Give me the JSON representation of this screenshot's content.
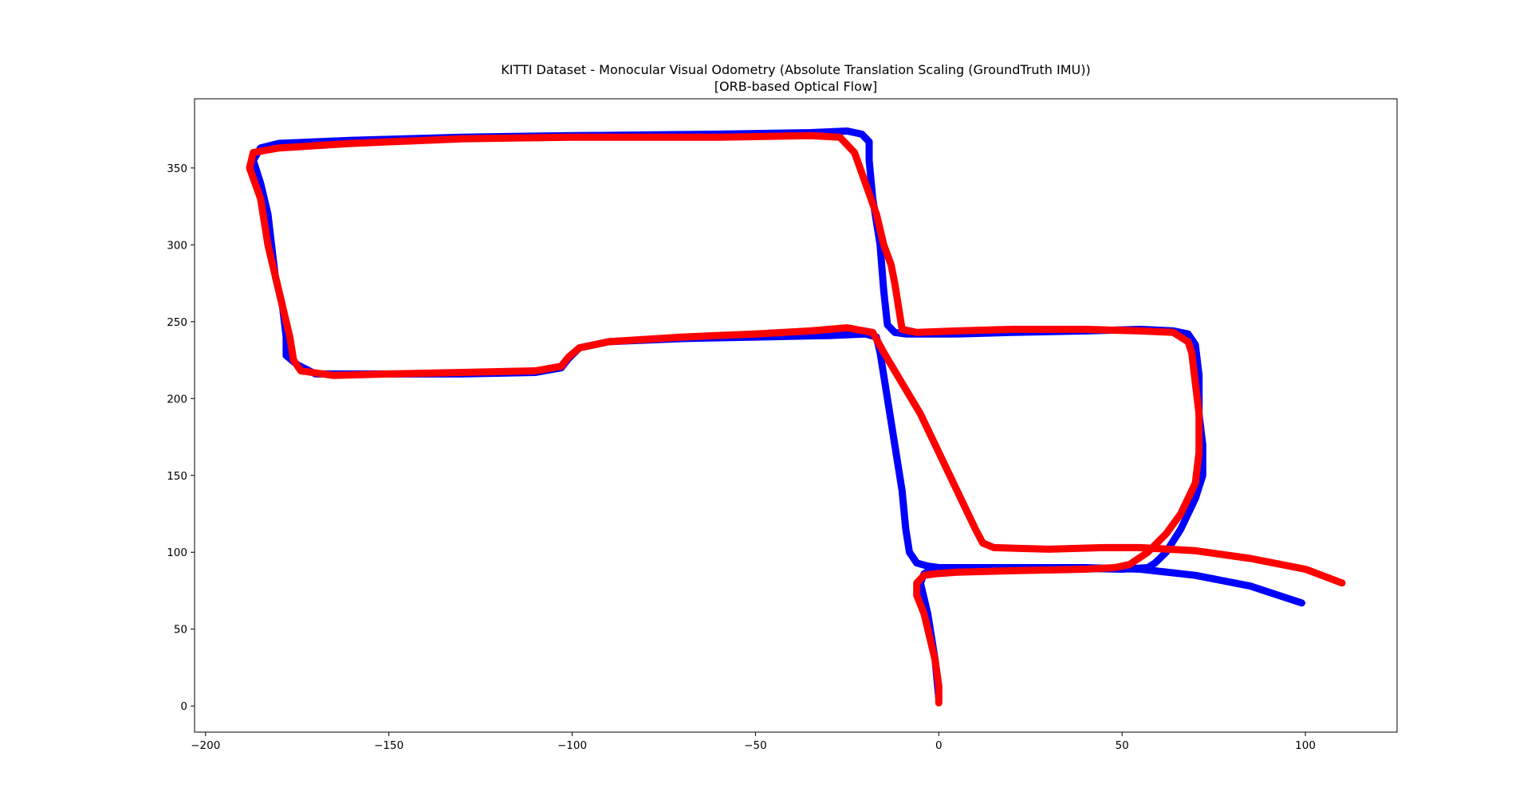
{
  "chart_data": {
    "type": "line",
    "title": "KITTI Dataset - Monocular Visual Odometry (Absolute Translation Scaling (GroundTruth IMU))",
    "subtitle": "[ORB-based Optical Flow]",
    "xlabel": "",
    "ylabel": "",
    "xlim": [
      -203,
      125
    ],
    "ylim": [
      -17,
      395
    ],
    "xticks": [
      -200,
      -150,
      -100,
      -50,
      0,
      50,
      100
    ],
    "yticks": [
      0,
      50,
      100,
      150,
      200,
      250,
      300,
      350
    ],
    "xtick_labels": [
      "−200",
      "−150",
      "−100",
      "−50",
      "0",
      "50",
      "100"
    ],
    "ytick_labels": [
      "0",
      "50",
      "100",
      "150",
      "200",
      "250",
      "300",
      "350"
    ],
    "grid": false,
    "series": [
      {
        "color": "#0000ff",
        "points": [
          [
            0,
            5
          ],
          [
            -1,
            30
          ],
          [
            -3,
            60
          ],
          [
            -5,
            80
          ],
          [
            -4,
            86
          ],
          [
            -2,
            89
          ],
          [
            3,
            90
          ],
          [
            10,
            90
          ],
          [
            30,
            90
          ],
          [
            50,
            89
          ],
          [
            57,
            90
          ],
          [
            59,
            93
          ],
          [
            62,
            100
          ],
          [
            66,
            115
          ],
          [
            70,
            135
          ],
          [
            72,
            150
          ],
          [
            72,
            170
          ],
          [
            71,
            190
          ],
          [
            71,
            215
          ],
          [
            70,
            235
          ],
          [
            68,
            242
          ],
          [
            64,
            244
          ],
          [
            55,
            245
          ],
          [
            40,
            244
          ],
          [
            20,
            243
          ],
          [
            5,
            242
          ],
          [
            -9,
            242
          ],
          [
            -12,
            243
          ],
          [
            -14,
            248
          ],
          [
            -15,
            270
          ],
          [
            -16,
            300
          ],
          [
            -18,
            330
          ],
          [
            -19,
            355
          ],
          [
            -19,
            367
          ],
          [
            -21,
            372
          ],
          [
            -25,
            374
          ],
          [
            -35,
            373
          ],
          [
            -60,
            372
          ],
          [
            -100,
            371
          ],
          [
            -130,
            370
          ],
          [
            -160,
            368
          ],
          [
            -180,
            366
          ],
          [
            -185,
            363
          ],
          [
            -187,
            355
          ],
          [
            -185,
            340
          ],
          [
            -183,
            320
          ],
          [
            -182,
            300
          ],
          [
            -181,
            280
          ],
          [
            -179,
            260
          ],
          [
            -178,
            240
          ],
          [
            -178,
            228
          ],
          [
            -175,
            222
          ],
          [
            -170,
            216
          ],
          [
            -155,
            216
          ],
          [
            -130,
            216
          ],
          [
            -110,
            217
          ],
          [
            -103,
            220
          ],
          [
            -101,
            226
          ],
          [
            -98,
            233
          ],
          [
            -90,
            237
          ],
          [
            -70,
            239
          ],
          [
            -50,
            240
          ],
          [
            -30,
            241
          ],
          [
            -20,
            242
          ],
          [
            -17,
            240
          ],
          [
            -16,
            230
          ],
          [
            -14,
            200
          ],
          [
            -12,
            170
          ],
          [
            -10,
            140
          ],
          [
            -9,
            115
          ],
          [
            -8,
            100
          ],
          [
            -6,
            93
          ],
          [
            -3,
            91
          ],
          [
            0,
            90
          ],
          [
            20,
            90
          ],
          [
            40,
            90
          ],
          [
            55,
            89
          ],
          [
            70,
            85
          ],
          [
            85,
            78
          ],
          [
            99,
            67
          ]
        ]
      },
      {
        "color": "#ff0000",
        "points": [
          [
            0,
            2
          ],
          [
            0,
            13
          ],
          [
            -1,
            30
          ],
          [
            -3,
            50
          ],
          [
            -4,
            60
          ],
          [
            -6,
            72
          ],
          [
            -6,
            80
          ],
          [
            -4,
            85
          ],
          [
            -1,
            86
          ],
          [
            5,
            87
          ],
          [
            20,
            88
          ],
          [
            40,
            89
          ],
          [
            48,
            90
          ],
          [
            52,
            92
          ],
          [
            57,
            100
          ],
          [
            62,
            112
          ],
          [
            66,
            125
          ],
          [
            70,
            145
          ],
          [
            71,
            165
          ],
          [
            71,
            190
          ],
          [
            70,
            210
          ],
          [
            69,
            230
          ],
          [
            68,
            237
          ],
          [
            64,
            243
          ],
          [
            55,
            244
          ],
          [
            40,
            245
          ],
          [
            20,
            245
          ],
          [
            5,
            244
          ],
          [
            -6,
            243
          ],
          [
            -10,
            245
          ],
          [
            -11,
            260
          ],
          [
            -12,
            275
          ],
          [
            -13,
            287
          ],
          [
            -15,
            300
          ],
          [
            -17,
            320
          ],
          [
            -20,
            340
          ],
          [
            -23,
            360
          ],
          [
            -27,
            370
          ],
          [
            -35,
            371
          ],
          [
            -60,
            370
          ],
          [
            -100,
            370
          ],
          [
            -130,
            369
          ],
          [
            -160,
            366
          ],
          [
            -180,
            363
          ],
          [
            -187,
            360
          ],
          [
            -188,
            350
          ],
          [
            -185,
            330
          ],
          [
            -183,
            300
          ],
          [
            -181,
            280
          ],
          [
            -179,
            260
          ],
          [
            -177,
            240
          ],
          [
            -176,
            225
          ],
          [
            -174,
            218
          ],
          [
            -165,
            215
          ],
          [
            -150,
            216
          ],
          [
            -130,
            217
          ],
          [
            -110,
            218
          ],
          [
            -103,
            221
          ],
          [
            -101,
            227
          ],
          [
            -98,
            233
          ],
          [
            -90,
            237
          ],
          [
            -70,
            240
          ],
          [
            -50,
            242
          ],
          [
            -35,
            244
          ],
          [
            -25,
            246
          ],
          [
            -18,
            243
          ],
          [
            -15,
            230
          ],
          [
            -10,
            210
          ],
          [
            -5,
            190
          ],
          [
            0,
            165
          ],
          [
            5,
            140
          ],
          [
            10,
            115
          ],
          [
            12,
            106
          ],
          [
            15,
            103
          ],
          [
            30,
            102
          ],
          [
            45,
            103
          ],
          [
            55,
            103
          ],
          [
            70,
            101
          ],
          [
            85,
            96
          ],
          [
            100,
            89
          ],
          [
            110,
            80
          ]
        ]
      }
    ]
  }
}
